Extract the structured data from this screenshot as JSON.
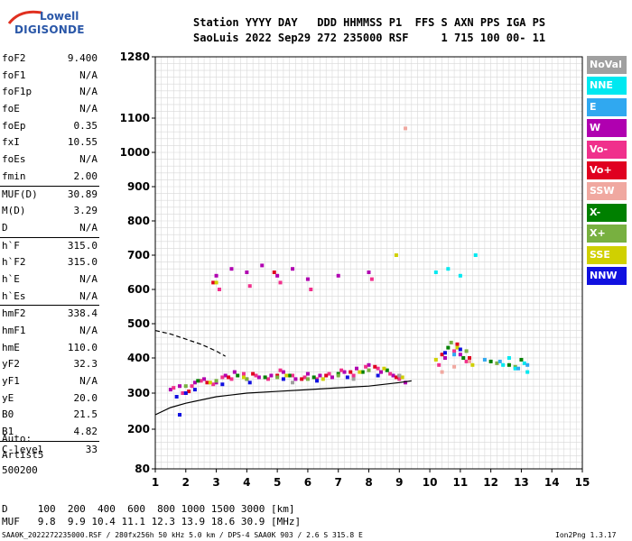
{
  "logo": {
    "line1": "Lowell",
    "line2": "DIGISONDE"
  },
  "header": {
    "line1": "Station YYYY DAY   DDD HHMMSS P1  FFS S AXN PPS IGA PS",
    "line2": "SaoLuis 2022 Sep29 272 235000 RSF     1 715 100 00- 11"
  },
  "params": [
    {
      "key": "foF2",
      "value": "9.400"
    },
    {
      "key": "foF1",
      "value": "N/A"
    },
    {
      "key": "foF1p",
      "value": "N/A"
    },
    {
      "key": "foE",
      "value": "N/A"
    },
    {
      "key": "foEp",
      "value": "0.35"
    },
    {
      "key": "fxI",
      "value": "10.55"
    },
    {
      "key": "foEs",
      "value": "N/A"
    },
    {
      "key": "fmin",
      "value": "2.00"
    },
    {
      "key": "MUF(D)",
      "value": "30.89"
    },
    {
      "key": "M(D)",
      "value": "3.29"
    },
    {
      "key": "D",
      "value": "N/A"
    },
    {
      "key": "h`F",
      "value": "315.0"
    },
    {
      "key": "h`F2",
      "value": "315.0"
    },
    {
      "key": "h`E",
      "value": "N/A"
    },
    {
      "key": "h`Es",
      "value": "N/A"
    },
    {
      "key": "hmF2",
      "value": "338.4"
    },
    {
      "key": "hmF1",
      "value": "N/A"
    },
    {
      "key": "hmE",
      "value": "110.0"
    },
    {
      "key": "yF2",
      "value": "32.3"
    },
    {
      "key": "yF1",
      "value": "N/A"
    },
    {
      "key": "yE",
      "value": "20.0"
    },
    {
      "key": "B0",
      "value": "21.5"
    },
    {
      "key": "B1",
      "value": "4.82"
    },
    {
      "key": "C-level",
      "value": "33"
    }
  ],
  "auto": {
    "line1": "Auto:",
    "line2": "Artist5",
    "line3": "500200"
  },
  "legend": [
    {
      "label": "NoVal",
      "color": "#a0a0a0"
    },
    {
      "label": "NNE",
      "color": "#00e8f0"
    },
    {
      "label": "E",
      "color": "#30a8f0"
    },
    {
      "label": "W",
      "color": "#b000b0"
    },
    {
      "label": "Vo-",
      "color": "#f0308c"
    },
    {
      "label": "Vo+",
      "color": "#e00020"
    },
    {
      "label": "SSW",
      "color": "#f0a8a0"
    },
    {
      "label": "X-",
      "color": "#008000"
    },
    {
      "label": "X+",
      "color": "#78b040"
    },
    {
      "label": "SSE",
      "color": "#d0d000"
    },
    {
      "label": "NNW",
      "color": "#1010e0"
    }
  ],
  "footer": {
    "d_line": "D     100  200  400  600  800 1000 1500 3000 [km]",
    "muf_line": "MUF   9.8  9.9 10.4 11.1 12.3 13.9 18.6 30.9 [MHz]",
    "file_line": "SAA0K_2022272235000.RSF / 280fx256h 50 kHz 5.0 km / DPS-4 SAA0K 903 / 2.6 S 315.8 E",
    "version": "Ion2Png 1.3.17"
  },
  "chart_data": {
    "type": "scatter",
    "x_ticks": [
      "1",
      "2",
      "3",
      "4",
      "5",
      "6",
      "7",
      "8",
      "9",
      "10",
      "11",
      "12",
      "13",
      "14",
      "15"
    ],
    "y_ticks": [
      "80",
      "200",
      "300",
      "400",
      "500",
      "600",
      "700",
      "800",
      "900",
      "1000",
      "1100",
      "1280"
    ],
    "xlim": [
      1,
      15
    ],
    "ylim": [
      80,
      1280
    ],
    "grid": true,
    "y_scale": "nonlinear",
    "series": [
      {
        "name": "W",
        "color": "#b000b0",
        "x": [
          1.5,
          1.8,
          2.0,
          2.3,
          2.6,
          3.0,
          3.3,
          3.6,
          4.0,
          4.4,
          4.8,
          5.2,
          5.6,
          6.0,
          6.4,
          6.8,
          7.2,
          7.6,
          8.0,
          8.4,
          8.8,
          9.2,
          10.5,
          11.0,
          3.0,
          3.5,
          4.0,
          4.5,
          5.0,
          5.5,
          6.0,
          7.0,
          8.0
        ],
        "y": [
          310,
          320,
          300,
          330,
          340,
          330,
          350,
          360,
          340,
          345,
          350,
          360,
          340,
          355,
          350,
          345,
          360,
          370,
          380,
          360,
          350,
          330,
          400,
          410,
          640,
          660,
          650,
          670,
          640,
          660,
          630,
          640,
          650
        ]
      },
      {
        "name": "Vo-",
        "color": "#f0308c",
        "x": [
          1.6,
          1.9,
          2.2,
          2.5,
          2.9,
          3.2,
          3.5,
          3.9,
          4.3,
          4.7,
          5.1,
          5.5,
          5.9,
          6.3,
          6.7,
          7.1,
          7.5,
          7.9,
          8.3,
          8.7,
          9.0,
          10.3,
          10.8,
          11.2,
          3.1,
          4.1,
          5.1,
          6.1,
          8.1
        ],
        "y": [
          315,
          300,
          320,
          335,
          325,
          345,
          340,
          355,
          350,
          340,
          365,
          350,
          345,
          340,
          355,
          365,
          350,
          375,
          370,
          355,
          340,
          380,
          420,
          390,
          600,
          610,
          620,
          600,
          630
        ]
      },
      {
        "name": "Vo+",
        "color": "#e00020",
        "x": [
          2.1,
          2.7,
          3.4,
          4.2,
          5.0,
          5.8,
          6.6,
          7.4,
          8.2,
          8.9,
          10.4,
          10.9,
          11.3,
          2.9,
          4.9
        ],
        "y": [
          305,
          330,
          345,
          355,
          350,
          340,
          350,
          360,
          375,
          345,
          410,
          440,
          400,
          620,
          650
        ]
      },
      {
        "name": "X-",
        "color": "#008000",
        "x": [
          2.4,
          3.7,
          4.6,
          5.4,
          6.2,
          7.0,
          7.8,
          8.6,
          10.6,
          11.1,
          12.0,
          12.6,
          13.0
        ],
        "y": [
          335,
          350,
          345,
          350,
          345,
          355,
          360,
          365,
          430,
          400,
          390,
          380,
          395
        ]
      },
      {
        "name": "X+",
        "color": "#78b040",
        "x": [
          2.0,
          3.0,
          4.0,
          5.0,
          6.0,
          7.0,
          8.0,
          9.0,
          10.7,
          11.2,
          12.2,
          12.8
        ],
        "y": [
          320,
          335,
          340,
          345,
          340,
          350,
          365,
          350,
          445,
          420,
          385,
          375
        ]
      },
      {
        "name": "SSE",
        "color": "#d0d000",
        "x": [
          2.8,
          3.9,
          5.3,
          6.5,
          7.7,
          8.5,
          9.1,
          10.2,
          10.9,
          11.4,
          8.9,
          3.0
        ],
        "y": [
          330,
          345,
          350,
          340,
          360,
          370,
          345,
          395,
          430,
          380,
          700,
          620
        ]
      },
      {
        "name": "NNE",
        "color": "#00e8f0",
        "x": [
          10.2,
          10.6,
          11.0,
          11.5,
          12.4,
          12.8,
          13.1,
          13.2,
          12.6
        ],
        "y": [
          650,
          660,
          640,
          700,
          380,
          370,
          385,
          360,
          400
        ]
      },
      {
        "name": "NNW",
        "color": "#1010e0",
        "x": [
          1.7,
          2.0,
          1.8,
          2.3,
          3.2,
          4.1,
          5.2,
          6.3,
          7.3,
          8.3,
          10.5,
          11.0
        ],
        "y": [
          290,
          300,
          240,
          310,
          325,
          330,
          340,
          335,
          345,
          350,
          415,
          425
        ]
      },
      {
        "name": "E",
        "color": "#30a8f0",
        "x": [
          12.3,
          12.9,
          13.2,
          11.8,
          10.8
        ],
        "y": [
          390,
          370,
          380,
          395,
          410
        ]
      },
      {
        "name": "SSW",
        "color": "#f0a8a0",
        "x": [
          9.2,
          10.4,
          10.8,
          11.3
        ],
        "y": [
          1070,
          360,
          375,
          390
        ]
      },
      {
        "name": "NoVal",
        "color": "#a0a0a0",
        "x": [
          5.5,
          7.5,
          9.0
        ],
        "y": [
          330,
          340,
          350
        ]
      }
    ],
    "curves": [
      {
        "style": "solid",
        "x": [
          1,
          1.5,
          2,
          3,
          4,
          5,
          6,
          7,
          8,
          9,
          9.4
        ],
        "y": [
          240,
          260,
          272,
          290,
          300,
          305,
          310,
          315,
          320,
          330,
          335
        ]
      },
      {
        "style": "dashed",
        "x": [
          1,
          1.5,
          2,
          2.5,
          3,
          3.3
        ],
        "y": [
          480,
          470,
          455,
          440,
          420,
          405
        ]
      }
    ]
  }
}
